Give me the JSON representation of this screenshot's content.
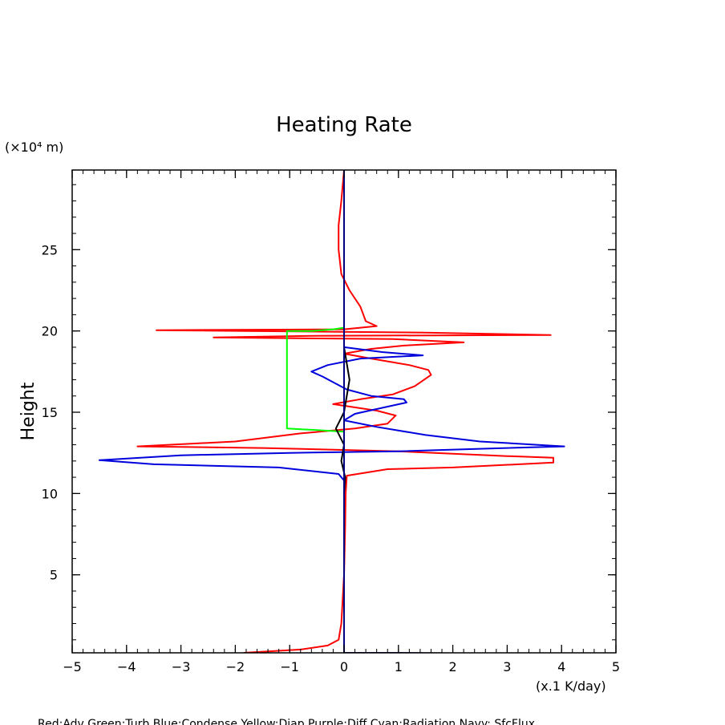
{
  "chart_data": {
    "type": "line",
    "title": "Heating Rate",
    "xlabel": "(x.1 K/day)",
    "ylabel": "Height",
    "y_unit": "(×10⁴ m)",
    "xlim": [
      -5,
      5
    ],
    "ylim": [
      0.2,
      29.9
    ],
    "x_ticks": [
      {
        "v": -5,
        "label": "−5"
      },
      {
        "v": -4,
        "label": "−4"
      },
      {
        "v": -3,
        "label": "−3"
      },
      {
        "v": -2,
        "label": "−2"
      },
      {
        "v": -1,
        "label": "−1"
      },
      {
        "v": 0,
        "label": "0"
      },
      {
        "v": 1,
        "label": "1"
      },
      {
        "v": 2,
        "label": "2"
      },
      {
        "v": 3,
        "label": "3"
      },
      {
        "v": 4,
        "label": "4"
      },
      {
        "v": 5,
        "label": "5"
      }
    ],
    "y_ticks": [
      {
        "v": 5,
        "label": "5"
      },
      {
        "v": 10,
        "label": "10"
      },
      {
        "v": 15,
        "label": "15"
      },
      {
        "v": 20,
        "label": "20"
      },
      {
        "v": 25,
        "label": "25"
      }
    ],
    "grid": false,
    "legend_text": "Red:Adv  Green:Turb  Blue:Condense  Yellow:Diap  Purple:Diff  Cyan:Radiation  Navy: SfcFlux",
    "series": [
      {
        "color": "#ff0000",
        "points": [
          [
            -1.85,
            0.2
          ],
          [
            -0.8,
            0.4
          ],
          [
            -0.3,
            0.65
          ],
          [
            -0.1,
            1.0
          ],
          [
            -0.05,
            2
          ],
          [
            0,
            5
          ],
          [
            0.02,
            8
          ],
          [
            0.03,
            10
          ],
          [
            0.05,
            11.1
          ],
          [
            0.8,
            11.5
          ],
          [
            2,
            11.6
          ],
          [
            3.85,
            11.9
          ],
          [
            3.85,
            12.2
          ],
          [
            3,
            12.3
          ],
          [
            1,
            12.6
          ],
          [
            -1.5,
            12.8
          ],
          [
            -3.8,
            12.9
          ],
          [
            -2,
            13.2
          ],
          [
            -0.8,
            13.7
          ],
          [
            0.2,
            14
          ],
          [
            0.8,
            14.3
          ],
          [
            0.95,
            14.8
          ],
          [
            0.6,
            15.1
          ],
          [
            -0.2,
            15.5
          ],
          [
            0.3,
            15.8
          ],
          [
            0.9,
            16.1
          ],
          [
            1.3,
            16.6
          ],
          [
            1.6,
            17.3
          ],
          [
            1.55,
            17.6
          ],
          [
            1.2,
            17.9
          ],
          [
            0.5,
            18.3
          ],
          [
            0,
            18.6
          ],
          [
            0.5,
            18.9
          ],
          [
            1.1,
            19.1
          ],
          [
            2.2,
            19.3
          ],
          [
            0.9,
            19.5
          ],
          [
            -2.4,
            19.6
          ],
          [
            -0.5,
            19.7
          ],
          [
            3.8,
            19.75
          ],
          [
            1.5,
            19.9
          ],
          [
            -3.45,
            20.05
          ],
          [
            0,
            20.1
          ],
          [
            0.6,
            20.3
          ],
          [
            0.4,
            20.6
          ],
          [
            0.3,
            21.5
          ],
          [
            0.1,
            22.5
          ],
          [
            -0.05,
            23.5
          ],
          [
            -0.1,
            25
          ],
          [
            -0.1,
            26.5
          ],
          [
            -0.05,
            28
          ],
          [
            0,
            29.9
          ]
        ]
      },
      {
        "color": "#00ff00",
        "points": [
          [
            0,
            13.8
          ],
          [
            -0.5,
            13.9
          ],
          [
            -1.05,
            14.0
          ],
          [
            -1.05,
            16
          ],
          [
            -1.05,
            18
          ],
          [
            -1.05,
            20.0
          ],
          [
            -0.6,
            20.0
          ],
          [
            -0.2,
            20.1
          ],
          [
            0,
            20.2
          ]
        ]
      },
      {
        "color": "#0000dd",
        "points": [
          [
            0,
            10.8
          ],
          [
            -0.1,
            11.2
          ],
          [
            -1.2,
            11.6
          ],
          [
            -3.5,
            11.8
          ],
          [
            -4.5,
            12.05
          ],
          [
            -3,
            12.35
          ],
          [
            -1,
            12.5
          ],
          [
            1,
            12.6
          ],
          [
            2.5,
            12.75
          ],
          [
            4.05,
            12.9
          ],
          [
            2.5,
            13.2
          ],
          [
            1.5,
            13.6
          ],
          [
            0.6,
            14.1
          ],
          [
            0,
            14.5
          ],
          [
            0.2,
            14.9
          ],
          [
            0.6,
            15.2
          ],
          [
            1.15,
            15.6
          ],
          [
            1.1,
            15.8
          ],
          [
            0.5,
            16.0
          ],
          [
            0.05,
            16.4
          ],
          [
            -0.4,
            17.2
          ],
          [
            -0.6,
            17.5
          ],
          [
            -0.3,
            17.9
          ],
          [
            0.3,
            18.3
          ],
          [
            1.45,
            18.5
          ],
          [
            0.7,
            18.7
          ],
          [
            0,
            19.0
          ],
          [
            0,
            19.5
          ],
          [
            0,
            20.5
          ],
          [
            0,
            21
          ],
          [
            0,
            22
          ],
          [
            0,
            25
          ],
          [
            0,
            29.9
          ]
        ]
      },
      {
        "color": "#000000",
        "points": [
          [
            0,
            0.2
          ],
          [
            0,
            5
          ],
          [
            0,
            10
          ],
          [
            0.02,
            11
          ],
          [
            -0.05,
            12
          ],
          [
            0,
            13
          ],
          [
            -0.15,
            14
          ],
          [
            0,
            15
          ],
          [
            0.05,
            16
          ],
          [
            0.1,
            17
          ],
          [
            0.05,
            18
          ],
          [
            0,
            19
          ],
          [
            0,
            20
          ],
          [
            0,
            22
          ],
          [
            0,
            25
          ],
          [
            0,
            29.9
          ]
        ]
      },
      {
        "color": "#000080",
        "points": [
          [
            0,
            0.2
          ],
          [
            0,
            5
          ],
          [
            0,
            10
          ],
          [
            0,
            15
          ],
          [
            0,
            20
          ],
          [
            0,
            25
          ],
          [
            0,
            29.9
          ]
        ]
      },
      {
        "color": "#000080",
        "points": [
          [
            0,
            0.2
          ],
          [
            1,
            0.2
          ],
          [
            3,
            0.15
          ],
          [
            5,
            0.1
          ]
        ]
      }
    ]
  }
}
